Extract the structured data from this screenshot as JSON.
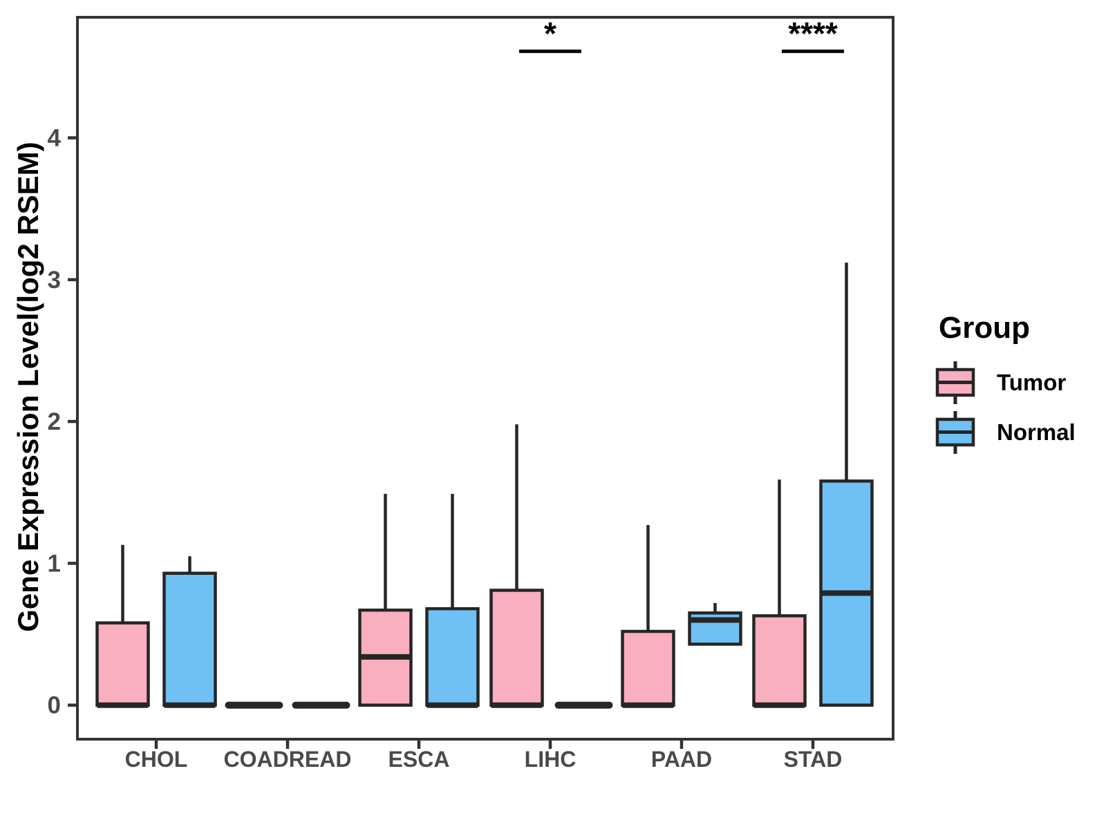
{
  "y_axis": {
    "title": "Gene Expression Level(log2 RSEM)",
    "tick_labels": [
      "0",
      "1",
      "2",
      "3",
      "4"
    ]
  },
  "x_axis": {
    "categories": [
      "CHOL",
      "COADREAD",
      "ESCA",
      "LIHC",
      "PAAD",
      "STAD"
    ]
  },
  "legend": {
    "title": "Group",
    "items": [
      {
        "label": "Tumor",
        "color": "#F9AFBF"
      },
      {
        "label": "Normal",
        "color": "#6FC0F4"
      }
    ]
  },
  "colors": {
    "box_border": "#262626",
    "axis": "#333333",
    "tick_label": "#4a4a4a",
    "annotation": "#000000"
  },
  "chart_data": {
    "type": "boxplot",
    "title": "",
    "xlabel": "",
    "ylabel": "Gene Expression Level(log2 RSEM)",
    "ylim": [
      -0.24,
      4.85
    ],
    "yticks": [
      0,
      1,
      2,
      3,
      4
    ],
    "grid": false,
    "legend_position": "right",
    "categories": [
      "CHOL",
      "COADREAD",
      "ESCA",
      "LIHC",
      "PAAD",
      "STAD"
    ],
    "series": [
      {
        "name": "Tumor",
        "color": "#F9AFBF",
        "stats": [
          {
            "category": "CHOL",
            "whisker_low": 0,
            "q1": 0,
            "median": 0,
            "q3": 0.58,
            "whisker_high": 1.13
          },
          {
            "category": "COADREAD",
            "whisker_low": 0,
            "q1": 0,
            "median": 0,
            "q3": 0,
            "whisker_high": 0
          },
          {
            "category": "ESCA",
            "whisker_low": 0,
            "q1": 0,
            "median": 0.34,
            "q3": 0.67,
            "whisker_high": 1.49
          },
          {
            "category": "LIHC",
            "whisker_low": 0,
            "q1": 0,
            "median": 0,
            "q3": 0.81,
            "whisker_high": 1.98
          },
          {
            "category": "PAAD",
            "whisker_low": 0,
            "q1": 0,
            "median": 0,
            "q3": 0.52,
            "whisker_high": 1.27
          },
          {
            "category": "STAD",
            "whisker_low": 0,
            "q1": 0,
            "median": 0,
            "q3": 0.63,
            "whisker_high": 1.59
          }
        ]
      },
      {
        "name": "Normal",
        "color": "#6FC0F4",
        "stats": [
          {
            "category": "CHOL",
            "whisker_low": 0,
            "q1": 0,
            "median": 0,
            "q3": 0.93,
            "whisker_high": 1.05
          },
          {
            "category": "COADREAD",
            "whisker_low": 0,
            "q1": 0,
            "median": 0,
            "q3": 0,
            "whisker_high": 0
          },
          {
            "category": "ESCA",
            "whisker_low": 0,
            "q1": 0,
            "median": 0,
            "q3": 0.68,
            "whisker_high": 1.49
          },
          {
            "category": "LIHC",
            "whisker_low": 0,
            "q1": 0,
            "median": 0,
            "q3": 0,
            "whisker_high": 0
          },
          {
            "category": "PAAD",
            "whisker_low": 0.43,
            "q1": 0.43,
            "median": 0.6,
            "q3": 0.65,
            "whisker_high": 0.72
          },
          {
            "category": "STAD",
            "whisker_low": 0,
            "q1": 0,
            "median": 0.79,
            "q3": 1.58,
            "whisker_high": 3.12
          }
        ]
      }
    ],
    "significance": [
      {
        "category": "LIHC",
        "label": "*",
        "y": 4.61
      },
      {
        "category": "STAD",
        "label": "****",
        "y": 4.61
      }
    ]
  }
}
